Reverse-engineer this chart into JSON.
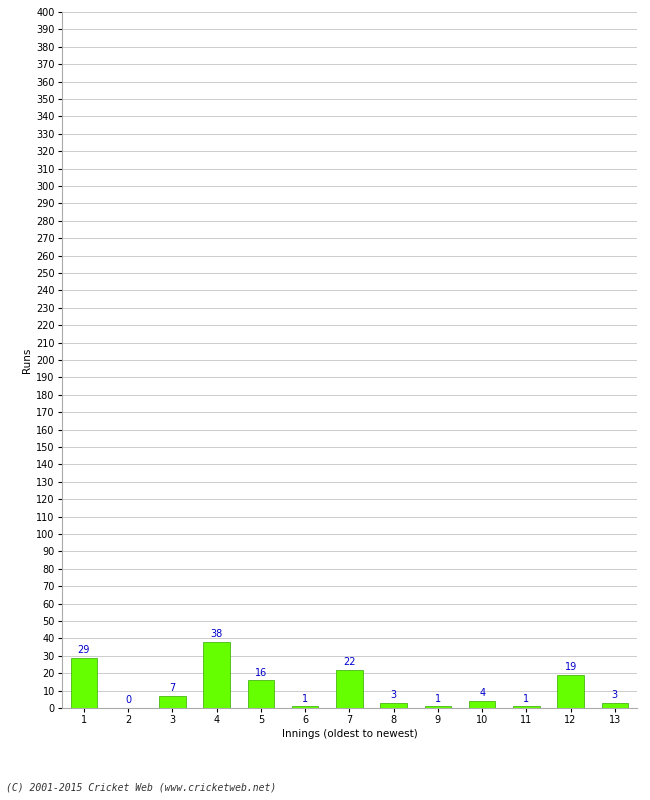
{
  "title": "",
  "xlabel": "Innings (oldest to newest)",
  "ylabel": "Runs",
  "categories": [
    "1",
    "2",
    "3",
    "4",
    "5",
    "6",
    "7",
    "8",
    "9",
    "10",
    "11",
    "12",
    "13"
  ],
  "values": [
    29,
    0,
    7,
    38,
    16,
    1,
    22,
    3,
    1,
    4,
    1,
    19,
    3
  ],
  "bar_color": "#66ff00",
  "bar_edge_color": "#33aa00",
  "label_color": "#0000cc",
  "ylim": [
    0,
    400
  ],
  "ytick_step": 10,
  "grid_color": "#cccccc",
  "background_color": "#ffffff",
  "footer_text": "(C) 2001-2015 Cricket Web (www.cricketweb.net)",
  "axis_label_fontsize": 7.5,
  "tick_fontsize": 7,
  "bar_label_fontsize": 7,
  "footer_fontsize": 7
}
